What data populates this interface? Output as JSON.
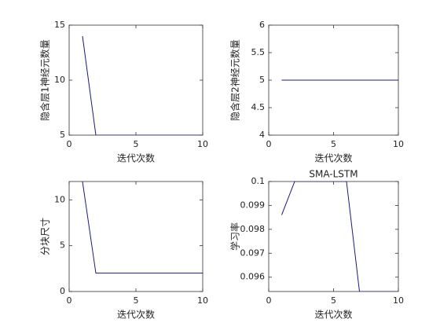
{
  "chart_data": [
    {
      "type": "line",
      "xlabel": "迭代次数",
      "ylabel": "隐含层1神经元数量",
      "x": [
        1,
        2,
        3,
        4,
        5,
        6,
        7,
        8,
        9,
        10
      ],
      "color": "#1a1a80",
      "series": [
        {
          "values": [
            14,
            5,
            5,
            5,
            5,
            5,
            5,
            5,
            5,
            5
          ]
        }
      ],
      "xlim": [
        0,
        10
      ],
      "xticks": [
        0,
        5,
        10
      ],
      "ylim": [
        5,
        15
      ],
      "yticks": [
        5,
        10,
        15
      ]
    },
    {
      "type": "line",
      "xlabel": "迭代次数",
      "ylabel": "隐含层2神经元数量",
      "x": [
        1,
        2,
        3,
        4,
        5,
        6,
        7,
        8,
        9,
        10
      ],
      "color": "#1a1a80",
      "series": [
        {
          "values": [
            5,
            5,
            5,
            5,
            5,
            5,
            5,
            5,
            5,
            5
          ]
        }
      ],
      "xlim": [
        0,
        10
      ],
      "xticks": [
        0,
        5,
        10
      ],
      "ylim": [
        4,
        6
      ],
      "yticks": [
        4,
        4.5,
        5,
        5.5,
        6
      ]
    },
    {
      "type": "line",
      "xlabel": "迭代次数",
      "ylabel": "分块尺寸",
      "x": [
        1,
        2,
        3,
        4,
        5,
        6,
        7,
        8,
        9,
        10
      ],
      "color": "#1a1a80",
      "series": [
        {
          "values": [
            12,
            2,
            2,
            2,
            2,
            2,
            2,
            2,
            2,
            2
          ]
        }
      ],
      "xlim": [
        0,
        10
      ],
      "xticks": [
        0,
        5,
        10
      ],
      "ylim": [
        0,
        12
      ],
      "yticks": [
        0,
        5,
        10
      ]
    },
    {
      "type": "line",
      "title": "SMA-LSTM",
      "xlabel": "迭代次数",
      "ylabel": "学习率",
      "x": [
        1,
        2,
        3,
        4,
        5,
        6,
        7,
        8,
        9,
        10
      ],
      "color": "#1a1a80",
      "series": [
        {
          "values": [
            0.0986,
            0.1,
            0.1,
            0.1,
            0.1,
            0.1,
            0.0954,
            0.0954,
            0.0954,
            0.0954
          ]
        }
      ],
      "xlim": [
        0,
        10
      ],
      "xticks": [
        0,
        5,
        10
      ],
      "ylim": [
        0.0954,
        0.1
      ],
      "yticks": [
        0.096,
        0.097,
        0.098,
        0.099,
        0.1
      ]
    }
  ]
}
